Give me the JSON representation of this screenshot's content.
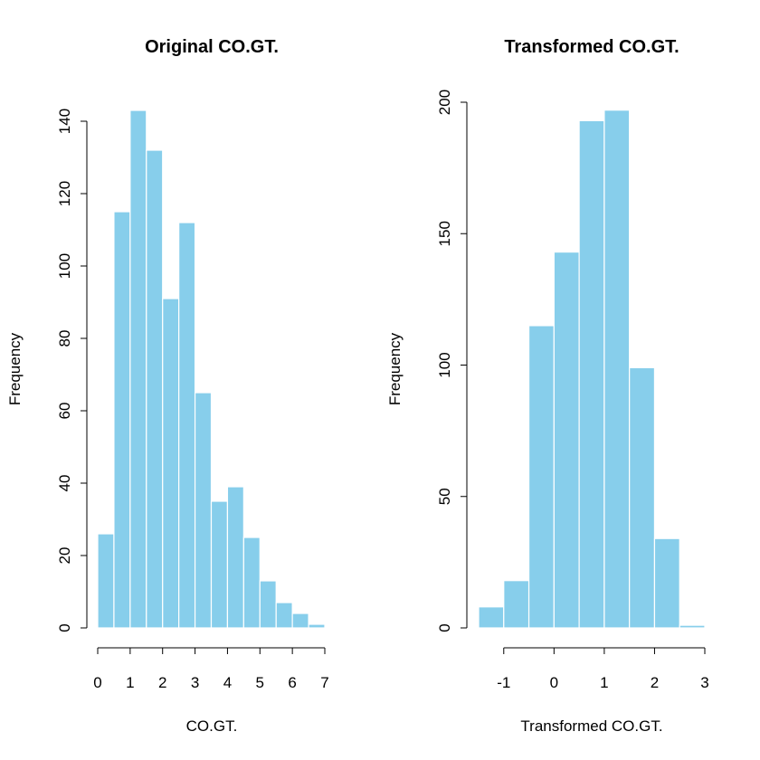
{
  "colors": {
    "bar_fill": "#87CEEB",
    "bar_stroke": "#ffffff",
    "axis": "#000000"
  },
  "chart_data": [
    {
      "type": "bar",
      "title": "Original CO.GT.",
      "xlabel": "CO.GT.",
      "ylabel": "Frequency",
      "xlim": [
        0,
        7
      ],
      "ylim": [
        0,
        140
      ],
      "xticks": [
        0,
        1,
        2,
        3,
        4,
        5,
        6,
        7
      ],
      "yticks": [
        0,
        20,
        40,
        60,
        80,
        100,
        120,
        140
      ],
      "bins": [
        {
          "from": 0.0,
          "to": 0.5,
          "count": 26
        },
        {
          "from": 0.5,
          "to": 1.0,
          "count": 115
        },
        {
          "from": 1.0,
          "to": 1.5,
          "count": 143
        },
        {
          "from": 1.5,
          "to": 2.0,
          "count": 132
        },
        {
          "from": 2.0,
          "to": 2.5,
          "count": 91
        },
        {
          "from": 2.5,
          "to": 3.0,
          "count": 112
        },
        {
          "from": 3.0,
          "to": 3.5,
          "count": 65
        },
        {
          "from": 3.5,
          "to": 4.0,
          "count": 35
        },
        {
          "from": 4.0,
          "to": 4.5,
          "count": 39
        },
        {
          "from": 4.5,
          "to": 5.0,
          "count": 25
        },
        {
          "from": 5.0,
          "to": 5.5,
          "count": 13
        },
        {
          "from": 5.5,
          "to": 6.0,
          "count": 7
        },
        {
          "from": 6.0,
          "to": 6.5,
          "count": 4
        },
        {
          "from": 6.5,
          "to": 7.0,
          "count": 1
        }
      ]
    },
    {
      "type": "bar",
      "title": "Transformed CO.GT.",
      "xlabel": "Transformed CO.GT.",
      "ylabel": "Frequency",
      "xlim": [
        -1.5,
        3
      ],
      "ylim": [
        0,
        200
      ],
      "xticks": [
        -1,
        0,
        1,
        2,
        3
      ],
      "yticks": [
        0,
        50,
        100,
        150,
        200
      ],
      "bins": [
        {
          "from": -1.5,
          "to": -1.0,
          "count": 8
        },
        {
          "from": -1.0,
          "to": -0.5,
          "count": 18
        },
        {
          "from": -0.5,
          "to": 0.0,
          "count": 115
        },
        {
          "from": 0.0,
          "to": 0.5,
          "count": 143
        },
        {
          "from": 0.5,
          "to": 1.0,
          "count": 193
        },
        {
          "from": 1.0,
          "to": 1.5,
          "count": 197
        },
        {
          "from": 1.5,
          "to": 2.0,
          "count": 99
        },
        {
          "from": 2.0,
          "to": 2.5,
          "count": 34
        },
        {
          "from": 2.5,
          "to": 3.0,
          "count": 1
        }
      ]
    }
  ]
}
